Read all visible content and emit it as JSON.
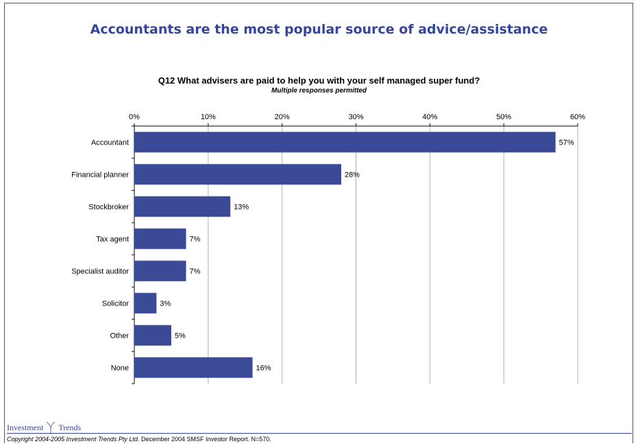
{
  "headline": "Accountants are the most popular source of advice/assistance",
  "colors": {
    "headline": "#35459a",
    "bar": "#3a4a96",
    "grid": "#b0b0b0"
  },
  "chart_data": {
    "type": "bar",
    "orientation": "horizontal",
    "title": "Q12 What advisers are paid to help you with your self managed super fund?",
    "subtitle": "Multiple responses permitted",
    "categories": [
      "Accountant",
      "Financial planner",
      "Stockbroker",
      "Tax agent",
      "Specialist auditor",
      "Solicitor",
      "Other",
      "None"
    ],
    "values": [
      57,
      28,
      13,
      7,
      7,
      3,
      5,
      16
    ],
    "value_labels": [
      "57%",
      "28%",
      "13%",
      "7%",
      "7%",
      "3%",
      "5%",
      "16%"
    ],
    "xlim": [
      0,
      60
    ],
    "ticks": [
      0,
      10,
      20,
      30,
      40,
      50,
      60
    ],
    "tick_labels": [
      "0%",
      "10%",
      "20%",
      "30%",
      "40%",
      "50%",
      "60%"
    ],
    "axis_position": "top",
    "grid": true,
    "legend": "none"
  },
  "logo": {
    "word1": "Investment",
    "word2": "Trends",
    "icon": "investment-trends-logo-icon"
  },
  "footer": {
    "copyright": "Copyright 2004-2005 Investment Trends Pty Ltd.",
    "report": " December 2004 SMSF Investor Report. N=570."
  }
}
